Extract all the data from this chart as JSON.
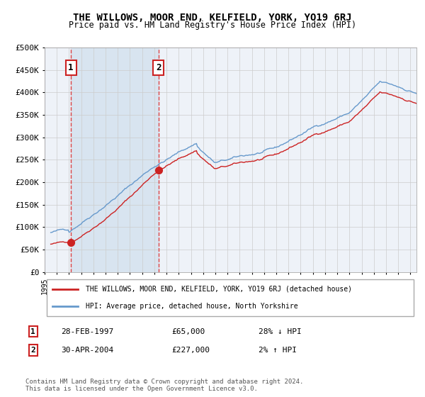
{
  "title": "THE WILLOWS, MOOR END, KELFIELD, YORK, YO19 6RJ",
  "subtitle": "Price paid vs. HM Land Registry's House Price Index (HPI)",
  "legend_line1": "THE WILLOWS, MOOR END, KELFIELD, YORK, YO19 6RJ (detached house)",
  "legend_line2": "HPI: Average price, detached house, North Yorkshire",
  "transaction1_date": "28-FEB-1997",
  "transaction1_price": "£65,000",
  "transaction1_hpi": "28% ↓ HPI",
  "transaction1_year": 1997.15,
  "transaction1_price_val": 65000,
  "transaction2_date": "30-APR-2004",
  "transaction2_price": "£227,000",
  "transaction2_hpi": "2% ↑ HPI",
  "transaction2_year": 2004.33,
  "transaction2_price_val": 227000,
  "footer": "Contains HM Land Registry data © Crown copyright and database right 2024.\nThis data is licensed under the Open Government Licence v3.0.",
  "ylim": [
    0,
    500000
  ],
  "yticks": [
    0,
    50000,
    100000,
    150000,
    200000,
    250000,
    300000,
    350000,
    400000,
    450000,
    500000
  ],
  "xlim_start": 1995.5,
  "xlim_end": 2025.5,
  "background_color": "#ffffff",
  "plot_bg_color": "#eef2f8",
  "shaded_region_color": "#d8e4f0",
  "grid_color": "#cccccc",
  "hpi_line_color": "#6699cc",
  "price_line_color": "#cc2222",
  "marker_color": "#cc2222",
  "vline_color": "#dd4444",
  "annotation_box_color": "#ffffff",
  "annotation_box_edge": "#cc2222"
}
